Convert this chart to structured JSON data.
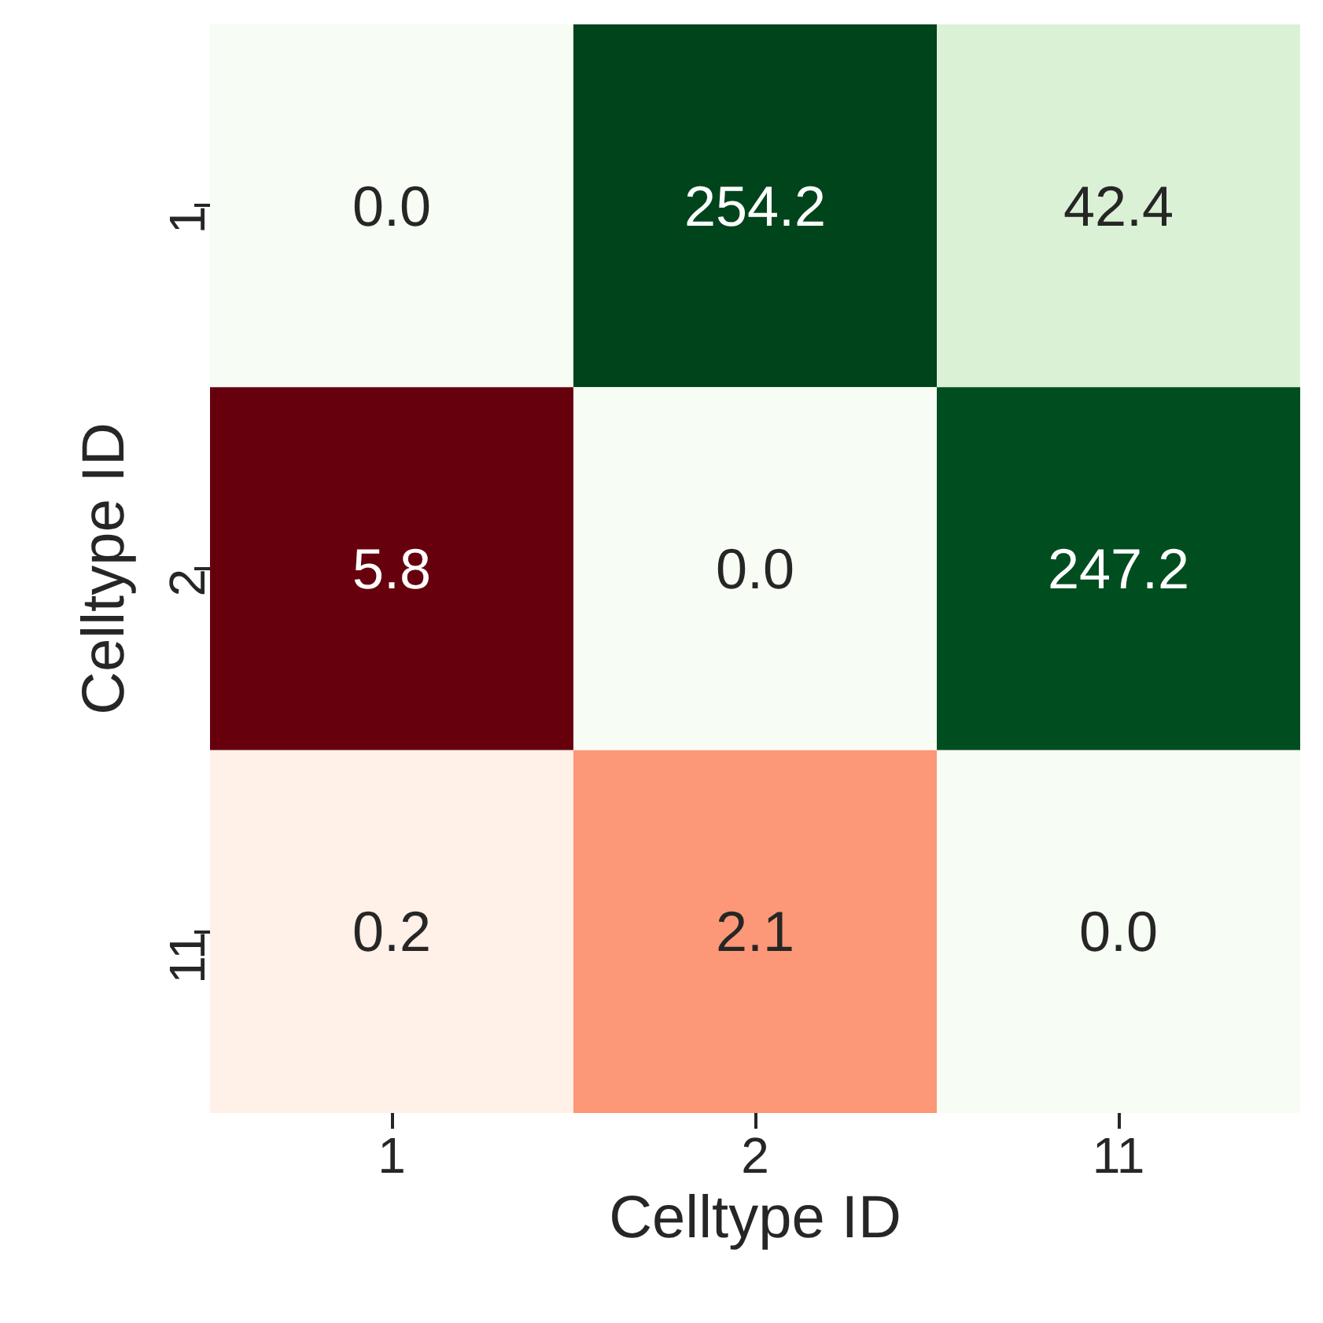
{
  "chart_data": {
    "type": "heatmap",
    "xlabel": "Celltype ID",
    "ylabel": "Celltype ID",
    "categories": [
      "1",
      "2",
      "11"
    ],
    "y_categories": [
      "1",
      "2",
      "11"
    ],
    "cells": [
      [
        0.0,
        254.2,
        42.4
      ],
      [
        5.8,
        0.0,
        247.2
      ],
      [
        0.2,
        2.1,
        0.0
      ]
    ],
    "cell_labels": [
      [
        "0.0",
        "254.2",
        "42.4"
      ],
      [
        "5.8",
        "0.0",
        "247.2"
      ],
      [
        "0.2",
        "2.1",
        "0.0"
      ]
    ],
    "grid": false
  }
}
